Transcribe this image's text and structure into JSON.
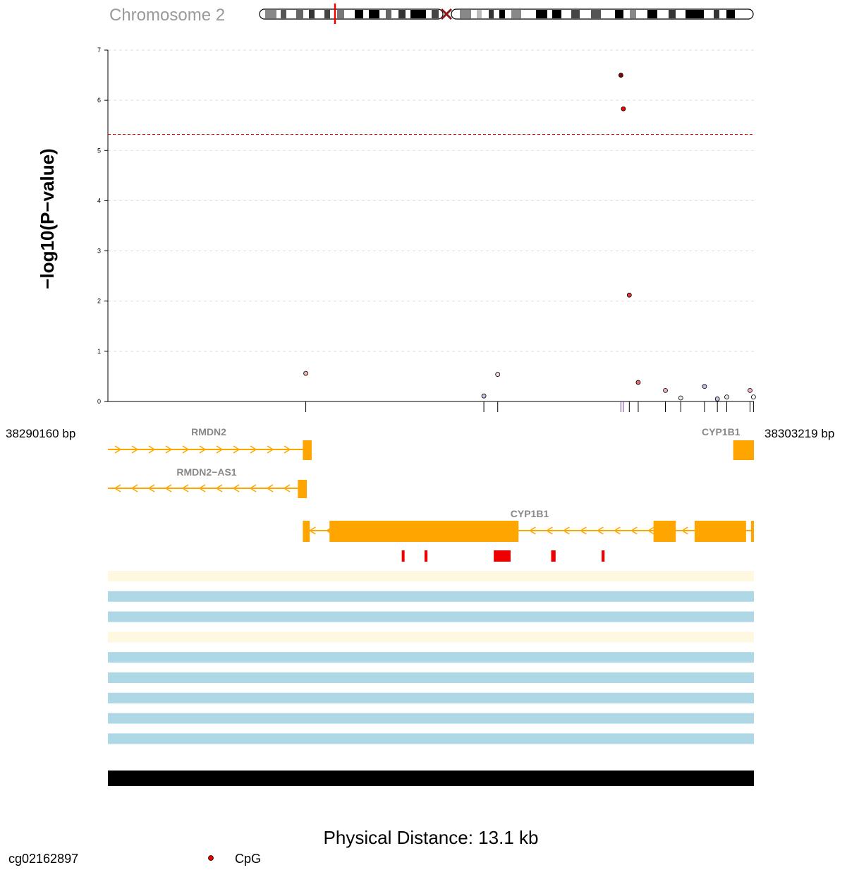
{
  "chromosome": {
    "label": "Chromosome 2"
  },
  "chart_data": {
    "type": "scatter",
    "ylabel": "−log10(P−value)",
    "ylim": [
      0,
      7
    ],
    "y_ticks": [
      "0",
      "1",
      "2",
      "3",
      "4",
      "5",
      "6",
      "7"
    ],
    "xlim": [
      38290160,
      38303219
    ],
    "start_label": "38290160 bp",
    "end_label": "38303219 bp",
    "distance_label": "Physical Distance: 13.1 kb",
    "significance_threshold": 5.32,
    "grid": "horizontal dashed",
    "points": [
      {
        "x": 38294160,
        "y": 0.56,
        "color": "#f4b0b0"
      },
      {
        "x": 38297760,
        "y": 0.11,
        "color": "#c9c3ea"
      },
      {
        "x": 38298040,
        "y": 0.54,
        "color": "#f2dbe4"
      },
      {
        "x": 38300530,
        "y": 6.5,
        "color": "#8b0000"
      },
      {
        "x": 38300580,
        "y": 5.83,
        "color": "#ee0000"
      },
      {
        "x": 38300700,
        "y": 2.12,
        "color": "#e83a3a"
      },
      {
        "x": 38300880,
        "y": 0.38,
        "color": "#e36b6b"
      },
      {
        "x": 38301430,
        "y": 0.22,
        "color": "#f2b2c4"
      },
      {
        "x": 38301740,
        "y": 0.07,
        "color": "#ece7f2"
      },
      {
        "x": 38302220,
        "y": 0.3,
        "color": "#c0bce8"
      },
      {
        "x": 38302480,
        "y": 0.05,
        "color": "#c9c3ea"
      },
      {
        "x": 38302670,
        "y": 0.09,
        "color": "#e9e4f2"
      },
      {
        "x": 38303140,
        "y": 0.22,
        "color": "#f2b2c4"
      },
      {
        "x": 38303210,
        "y": 0.09,
        "color": "#ffffff"
      }
    ],
    "genes": [
      {
        "name": "RMDN2",
        "strand": "+",
        "exons": [
          [
            38294100,
            38294280
          ],
          [
            38302800,
            38303219
          ]
        ],
        "line": [
          38290160,
          38294280
        ]
      },
      {
        "name": "RMDN2−AS1",
        "strand": "−",
        "exons": [
          [
            38294000,
            38294180
          ]
        ],
        "line": [
          38290160,
          38294180
        ]
      },
      {
        "name": "CYP1B1",
        "strand": "−",
        "exons": [
          [
            38294100,
            38294240
          ],
          [
            38294640,
            38298460
          ],
          [
            38301190,
            38301640
          ],
          [
            38302020,
            38303060
          ],
          [
            38303160,
            38303219
          ]
        ],
        "line": [
          38294100,
          38303219
        ]
      }
    ],
    "cpg_marks": [
      {
        "x": 38296100,
        "w": 40
      },
      {
        "x": 38296560,
        "w": 60
      },
      {
        "x": 38297960,
        "w": 340
      },
      {
        "x": 38299120,
        "w": 90
      },
      {
        "x": 38300140,
        "w": 60
      }
    ],
    "tracks": [
      "#fff8e1",
      "#aed8e6",
      "#aed8e6",
      "#fff8e1",
      "#aed8e6",
      "#aed8e6",
      "#aed8e6",
      "#aed8e6",
      "#aed8e6"
    ],
    "legend": {
      "probe": "cg02162897",
      "marker_label": "CpG",
      "marker_color": "#ee0000"
    }
  },
  "colors": {
    "gene": "#ffa500",
    "threshold": "#ff0000",
    "cpg": "#ee0000",
    "ideogram_mark": "#ee0000"
  }
}
